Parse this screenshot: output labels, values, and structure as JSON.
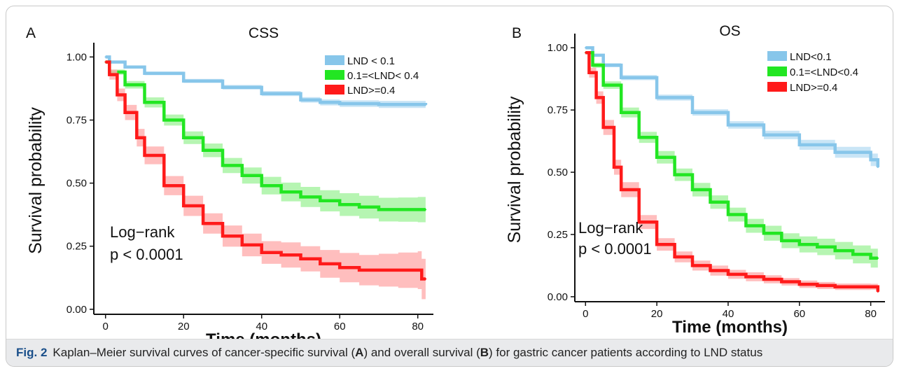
{
  "caption": {
    "figure_label": "Fig. 2",
    "parts": [
      "Kaplan–Meier survival curves of cancer-specific survival (",
      "A",
      ") and overall survival (",
      "B",
      ") for gastric cancer patients according to LND status"
    ]
  },
  "colors": {
    "low": "#87c6ea",
    "low_ci": "#bfe0f4",
    "mid": "#22e622",
    "mid_ci": "#a9f3a4",
    "high": "#ff1a1a",
    "high_ci": "#ffb3b3"
  },
  "chart_data": [
    {
      "type": "line",
      "panel_label": "A",
      "title": "CSS",
      "xlabel": "Time (months)",
      "ylabel": "Survival probability",
      "xlim": [
        -3,
        84
      ],
      "ylim": [
        -0.02,
        1.04
      ],
      "xticks": [
        0,
        20,
        40,
        60,
        80
      ],
      "yticks": [
        0.0,
        0.25,
        0.5,
        0.75,
        1.0
      ],
      "xtick_labels": [
        "0",
        "20",
        "40",
        "60",
        "80"
      ],
      "ytick_labels": [
        "0.00",
        "0.25",
        "0.50",
        "0.75",
        "1.00"
      ],
      "annotation": [
        "Log−rank",
        "p < 0.0001"
      ],
      "legend_position": "top-right",
      "grid": false,
      "series": [
        {
          "name": "LND <  0.1",
          "color_key": "low",
          "x": [
            0,
            1,
            5,
            10,
            20,
            30,
            40,
            50,
            55,
            60,
            70,
            82
          ],
          "y": [
            1.0,
            0.98,
            0.96,
            0.935,
            0.905,
            0.88,
            0.855,
            0.83,
            0.82,
            0.815,
            0.812,
            0.81
          ],
          "ci_halfwidth": [
            0.0,
            0.004,
            0.006,
            0.007,
            0.008,
            0.009,
            0.01,
            0.011,
            0.012,
            0.013,
            0.014,
            0.016
          ]
        },
        {
          "name": "0.1=<LND< 0.4",
          "color_key": "mid",
          "x": [
            0,
            1,
            5,
            10,
            15,
            20,
            25,
            30,
            35,
            40,
            45,
            50,
            55,
            60,
            65,
            70,
            75,
            80,
            82
          ],
          "y": [
            0.98,
            0.94,
            0.89,
            0.82,
            0.75,
            0.68,
            0.63,
            0.57,
            0.53,
            0.49,
            0.465,
            0.445,
            0.43,
            0.415,
            0.405,
            0.395,
            0.395,
            0.395,
            0.395
          ],
          "ci_halfwidth": [
            0.0,
            0.01,
            0.015,
            0.02,
            0.022,
            0.025,
            0.027,
            0.03,
            0.032,
            0.035,
            0.037,
            0.04,
            0.042,
            0.045,
            0.045,
            0.047,
            0.048,
            0.05,
            0.05
          ]
        },
        {
          "name": "LND>=0.4",
          "color_key": "high",
          "x": [
            0,
            1,
            3,
            5,
            8,
            10,
            15,
            20,
            25,
            30,
            35,
            40,
            45,
            50,
            55,
            60,
            65,
            70,
            75,
            80,
            81,
            82
          ],
          "y": [
            0.98,
            0.93,
            0.85,
            0.78,
            0.68,
            0.61,
            0.49,
            0.41,
            0.34,
            0.29,
            0.255,
            0.225,
            0.215,
            0.2,
            0.18,
            0.165,
            0.155,
            0.155,
            0.155,
            0.155,
            0.12,
            0.12
          ],
          "ci_halfwidth": [
            0.0,
            0.02,
            0.025,
            0.03,
            0.035,
            0.035,
            0.038,
            0.04,
            0.04,
            0.042,
            0.045,
            0.045,
            0.05,
            0.05,
            0.055,
            0.058,
            0.06,
            0.065,
            0.07,
            0.075,
            0.08,
            0.08
          ]
        }
      ]
    },
    {
      "type": "line",
      "panel_label": "B",
      "title": "OS",
      "xlabel": "Time (months)",
      "ylabel": "Survival probability",
      "xlim": [
        -3,
        84
      ],
      "ylim": [
        -0.02,
        1.04
      ],
      "xticks": [
        0,
        20,
        40,
        60,
        80
      ],
      "yticks": [
        0.0,
        0.25,
        0.5,
        0.75,
        1.0
      ],
      "xtick_labels": [
        "0",
        "20",
        "40",
        "60",
        "80"
      ],
      "ytick_labels": [
        "0.00",
        "0.25",
        "0.50",
        "0.75",
        "1.00"
      ],
      "annotation": [
        "Log−rank",
        "p < 0.0001"
      ],
      "legend_position": "top-right",
      "grid": false,
      "series": [
        {
          "name": "LND<0.1",
          "color_key": "low",
          "x": [
            0,
            2,
            5,
            10,
            20,
            30,
            40,
            50,
            60,
            70,
            80,
            82
          ],
          "y": [
            1.0,
            0.97,
            0.93,
            0.88,
            0.8,
            0.74,
            0.69,
            0.65,
            0.61,
            0.58,
            0.55,
            0.52
          ],
          "ci_halfwidth": [
            0.0,
            0.005,
            0.008,
            0.01,
            0.012,
            0.013,
            0.015,
            0.017,
            0.02,
            0.022,
            0.025,
            0.027
          ]
        },
        {
          "name": "0.1=<LND<0.4",
          "color_key": "mid",
          "x": [
            0,
            2,
            5,
            10,
            15,
            20,
            25,
            30,
            35,
            40,
            45,
            50,
            55,
            60,
            65,
            70,
            75,
            80,
            82
          ],
          "y": [
            0.98,
            0.93,
            0.85,
            0.74,
            0.64,
            0.56,
            0.49,
            0.43,
            0.38,
            0.33,
            0.285,
            0.255,
            0.225,
            0.21,
            0.2,
            0.185,
            0.17,
            0.155,
            0.155
          ],
          "ci_halfwidth": [
            0.0,
            0.01,
            0.015,
            0.02,
            0.022,
            0.025,
            0.025,
            0.027,
            0.027,
            0.028,
            0.028,
            0.03,
            0.03,
            0.032,
            0.033,
            0.035,
            0.036,
            0.038,
            0.038
          ]
        },
        {
          "name": "LND>=0.4",
          "color_key": "high",
          "x": [
            0,
            1,
            3,
            5,
            8,
            10,
            15,
            20,
            25,
            30,
            35,
            40,
            45,
            50,
            55,
            60,
            65,
            70,
            75,
            80,
            82
          ],
          "y": [
            0.98,
            0.9,
            0.8,
            0.68,
            0.52,
            0.43,
            0.3,
            0.21,
            0.16,
            0.125,
            0.105,
            0.09,
            0.08,
            0.07,
            0.06,
            0.05,
            0.045,
            0.04,
            0.04,
            0.04,
            0.02
          ],
          "ci_halfwidth": [
            0.0,
            0.02,
            0.025,
            0.03,
            0.03,
            0.03,
            0.028,
            0.025,
            0.022,
            0.02,
            0.02,
            0.018,
            0.018,
            0.016,
            0.015,
            0.015,
            0.014,
            0.013,
            0.013,
            0.012,
            0.012
          ]
        }
      ]
    }
  ]
}
